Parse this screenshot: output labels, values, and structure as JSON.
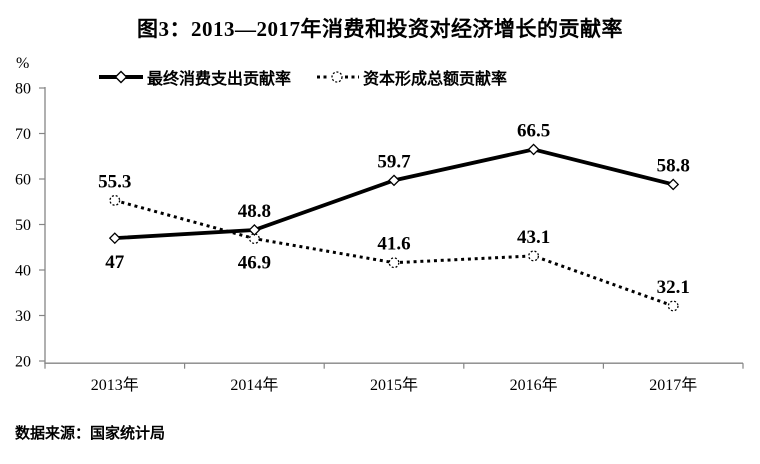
{
  "title": "图3：2013—2017年消费和投资对经济增长的贡献率",
  "source_note": "数据来源：国家统计局",
  "colors": {
    "series": "#000000",
    "marker_fill": "#ffffff",
    "axis": "#858585",
    "text": "#000000",
    "background": "#ffffff"
  },
  "chart_data": {
    "type": "line",
    "title": "图3：2013—2017年消费和投资对经济增长的贡献率",
    "categories": [
      "2013年",
      "2014年",
      "2015年",
      "2016年",
      "2017年"
    ],
    "series": [
      {
        "name": "最终消费支出贡献率",
        "values": [
          47,
          48.8,
          59.7,
          66.5,
          58.8
        ],
        "marker": "diamond",
        "line_style": "solid",
        "label_positions": [
          "below",
          "above",
          "above",
          "above",
          "above"
        ]
      },
      {
        "name": "资本形成总额贡献率",
        "values": [
          55.3,
          46.9,
          41.6,
          43.1,
          32.1
        ],
        "marker": "circle",
        "line_style": "dotted",
        "label_positions": [
          "above",
          "below",
          "above",
          "above",
          "above"
        ]
      }
    ],
    "ylabel": "%",
    "ylim": [
      20,
      80
    ],
    "yticks": [
      80,
      70,
      60,
      50,
      40,
      30,
      20
    ],
    "grid": false,
    "legend_position": "top",
    "data_labels": true
  }
}
